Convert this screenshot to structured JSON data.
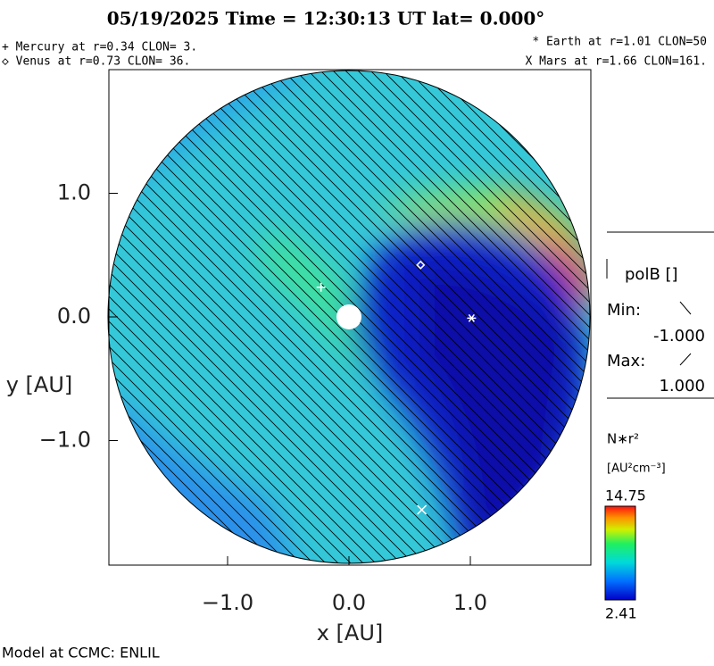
{
  "chart_data": {
    "type": "scatter",
    "title": "05/19/2025 Time = 12:30:13 UT lat= 0.000°",
    "planets": [
      {
        "label": "+ Mercury at r=0.34 CLON=  3.",
        "x": -0.23,
        "y": 0.24
      },
      {
        "label": "◇ Venus at r=0.73 CLON= 36.",
        "x": 0.59,
        "y": 0.42
      },
      {
        "label": "* Earth at  r=1.01 CLON=50",
        "x": 1.01,
        "y": -0.01
      },
      {
        "label": "X Mars at r=1.66 CLON=161.",
        "x": 0.6,
        "y": -1.56
      }
    ],
    "x_label": "x [AU]",
    "y_label": "y [AU]",
    "xlim": [
      -2,
      2
    ],
    "ylim": [
      -2,
      2
    ],
    "xticks": [
      {
        "value": -1,
        "label": "−1.0"
      },
      {
        "value": 0,
        "label": "0.0"
      },
      {
        "value": 1,
        "label": "1.0"
      }
    ],
    "yticks": [
      {
        "value": -1,
        "label": "−1.0"
      },
      {
        "value": 0,
        "label": "0.0"
      },
      {
        "value": 1,
        "label": "1.0"
      }
    ],
    "polarity": {
      "title": "polB []",
      "min_label": "Min:",
      "min": -1.0,
      "min_text": "-1.000",
      "max_label": "Max:",
      "max": 1.0,
      "max_text": "1.000"
    },
    "colorbar": {
      "title": "N∗r²",
      "units": "[AU²cm⁻³]",
      "max": 14.75,
      "min": 2.41
    },
    "footer": "Model at CCMC: ENLIL"
  }
}
